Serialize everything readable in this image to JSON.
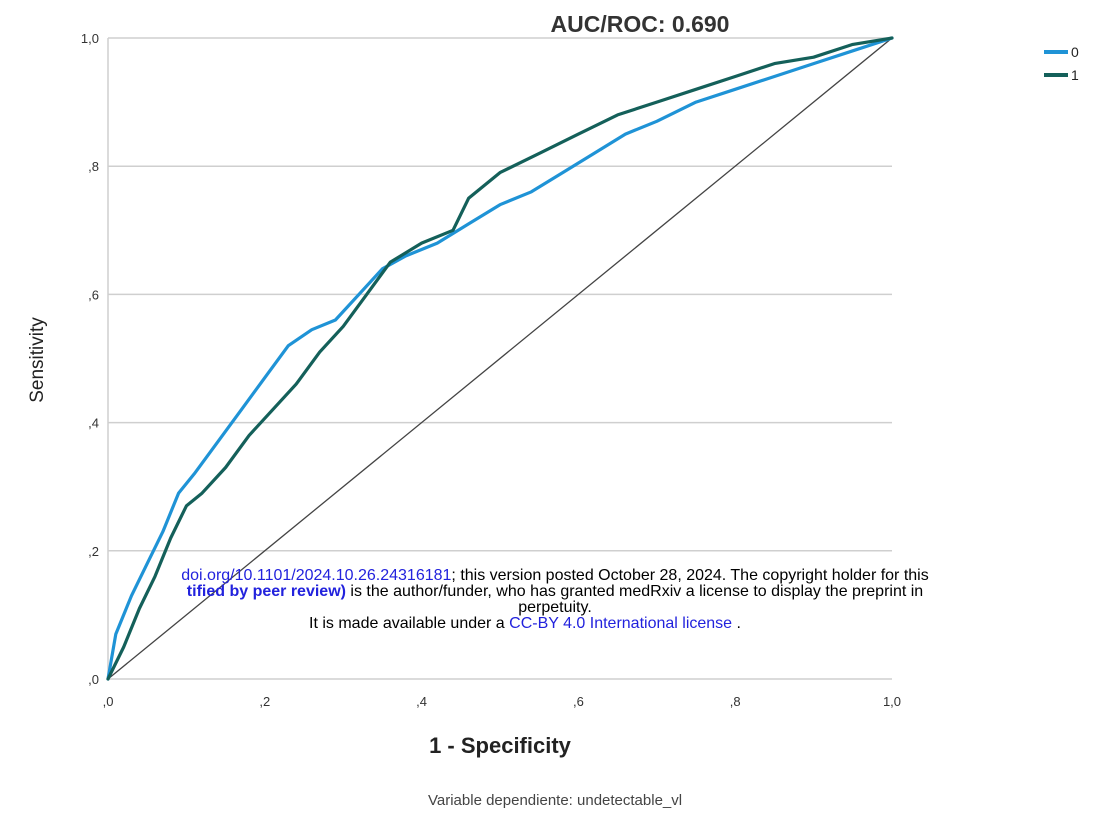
{
  "chart_data": {
    "type": "line",
    "title": "AUC/ROC: 0.690",
    "xlabel": "1 - Specificity",
    "ylabel": "Sensitivity",
    "caption": "Variable dependiente: undetectable_vl",
    "xlim": [
      0,
      1
    ],
    "ylim": [
      0,
      1
    ],
    "xticks": [
      ",0",
      ",2",
      ",4",
      ",6",
      ",8",
      "1,0"
    ],
    "yticks": [
      ",0",
      ",2",
      ",4",
      ",6",
      ",8",
      "1,0"
    ],
    "grid": "horizontal",
    "legend_position": "top-right",
    "reference_line": [
      [
        0,
        0
      ],
      [
        1,
        1
      ]
    ],
    "series": [
      {
        "name": "0",
        "color": "#1f93d6",
        "x": [
          0,
          0.01,
          0.03,
          0.05,
          0.07,
          0.09,
          0.11,
          0.14,
          0.17,
          0.2,
          0.23,
          0.26,
          0.29,
          0.32,
          0.35,
          0.38,
          0.42,
          0.46,
          0.5,
          0.54,
          0.58,
          0.62,
          0.66,
          0.7,
          0.75,
          0.8,
          0.85,
          0.9,
          0.95,
          1.0
        ],
        "y": [
          0,
          0.07,
          0.13,
          0.18,
          0.23,
          0.29,
          0.32,
          0.37,
          0.42,
          0.47,
          0.52,
          0.545,
          0.56,
          0.6,
          0.64,
          0.66,
          0.68,
          0.71,
          0.74,
          0.76,
          0.79,
          0.82,
          0.85,
          0.87,
          0.9,
          0.92,
          0.94,
          0.96,
          0.98,
          1.0
        ]
      },
      {
        "name": "1",
        "color": "#14605a",
        "x": [
          0,
          0.02,
          0.04,
          0.06,
          0.08,
          0.1,
          0.12,
          0.15,
          0.18,
          0.21,
          0.24,
          0.27,
          0.3,
          0.33,
          0.36,
          0.4,
          0.44,
          0.46,
          0.5,
          0.55,
          0.6,
          0.65,
          0.7,
          0.75,
          0.8,
          0.85,
          0.9,
          0.95,
          1.0
        ],
        "y": [
          0,
          0.05,
          0.11,
          0.16,
          0.22,
          0.27,
          0.29,
          0.33,
          0.38,
          0.42,
          0.46,
          0.51,
          0.55,
          0.6,
          0.65,
          0.68,
          0.7,
          0.75,
          0.79,
          0.82,
          0.85,
          0.88,
          0.9,
          0.92,
          0.94,
          0.96,
          0.97,
          0.99,
          1.0
        ]
      }
    ]
  },
  "watermark": {
    "line1_link": "doi.org/10.1101/2024.10.26.24316181",
    "line1_text": "; this version posted October 28, 2024. The copyright holder for this",
    "line2_bold": "tified by peer review)",
    "line2_text": " is the author/funder, who has granted medRxiv a license to display the preprint in",
    "line3_text": "perpetuity.",
    "line4_text": "It is made available under a ",
    "line4_link": "CC-BY 4.0 International license",
    "line4_end": " ."
  },
  "colors": {
    "diagonal": "#444444",
    "gridline": "#cfcfcf"
  }
}
